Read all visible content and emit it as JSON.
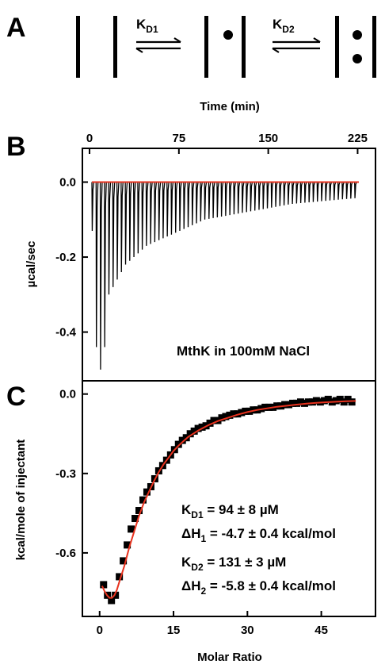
{
  "panel_a": {
    "letter": "A",
    "k1_main": "K",
    "k1_sub": "D1",
    "k2_main": "K",
    "k2_sub": "D2"
  },
  "chart_data": [
    {
      "panel": "B",
      "type": "line",
      "top_axis_title": "Time (min)",
      "ylabel": "µcal/sec",
      "xticks": [
        "0",
        "75",
        "150",
        "225"
      ],
      "yticks": [
        "0.0",
        "-0.2",
        "-0.4"
      ],
      "xlim": [
        -6,
        240
      ],
      "ylim": [
        -0.53,
        0.09
      ],
      "annotation": "MthK in 100mM NaCl",
      "injection_peaks": {
        "count": 64,
        "start_time": 2,
        "interval": 3.5,
        "peak_depths": [
          -0.13,
          -0.44,
          -0.5,
          -0.44,
          -0.3,
          -0.28,
          -0.26,
          -0.24,
          -0.22,
          -0.21,
          -0.2,
          -0.19,
          -0.18,
          -0.17,
          -0.165,
          -0.16,
          -0.155,
          -0.15,
          -0.145,
          -0.14,
          -0.135,
          -0.13,
          -0.125,
          -0.12,
          -0.115,
          -0.11,
          -0.105,
          -0.1,
          -0.098,
          -0.096,
          -0.094,
          -0.092,
          -0.09,
          -0.088,
          -0.086,
          -0.084,
          -0.082,
          -0.08,
          -0.078,
          -0.076,
          -0.074,
          -0.072,
          -0.07,
          -0.068,
          -0.066,
          -0.064,
          -0.062,
          -0.06,
          -0.058,
          -0.057,
          -0.056,
          -0.055,
          -0.054,
          -0.053,
          -0.052,
          -0.051,
          -0.05,
          -0.049,
          -0.048,
          -0.047,
          -0.046,
          -0.045,
          -0.044,
          -0.043
        ]
      },
      "baseline": 0.0,
      "colors": {
        "trace": "#000000",
        "baseline": "#e8321e"
      }
    },
    {
      "panel": "C",
      "type": "scatter",
      "xlabel": "Molar Ratio",
      "ylabel": "kcal/mole of injectant",
      "xticks": [
        "0",
        "15",
        "30",
        "45"
      ],
      "yticks": [
        "0.0",
        "-0.3",
        "-0.6"
      ],
      "xlim": [
        -3.5,
        56
      ],
      "ylim": [
        -0.84,
        0.05
      ],
      "points": {
        "x": [
          0.8,
          1.6,
          2.4,
          3.2,
          4.0,
          4.8,
          5.6,
          6.4,
          7.2,
          8.0,
          8.8,
          9.6,
          10.4,
          11.2,
          12.0,
          12.8,
          13.6,
          14.4,
          15.2,
          16.0,
          16.8,
          17.6,
          18.4,
          19.2,
          20.0,
          20.8,
          21.6,
          22.4,
          23.2,
          24.0,
          24.8,
          25.6,
          26.4,
          27.2,
          28.0,
          28.8,
          29.6,
          30.4,
          31.2,
          32.0,
          32.8,
          33.6,
          34.4,
          35.2,
          36.0,
          36.8,
          37.6,
          38.4,
          39.2,
          40.0,
          40.8,
          41.6,
          42.4,
          43.2,
          44.0,
          44.8,
          45.6,
          46.4,
          47.2,
          48.0,
          48.8,
          49.6,
          50.4,
          51.2
        ],
        "y": [
          -0.72,
          -0.76,
          -0.78,
          -0.76,
          -0.69,
          -0.63,
          -0.57,
          -0.51,
          -0.47,
          -0.44,
          -0.4,
          -0.37,
          -0.35,
          -0.32,
          -0.29,
          -0.27,
          -0.25,
          -0.23,
          -0.21,
          -0.19,
          -0.175,
          -0.165,
          -0.15,
          -0.14,
          -0.13,
          -0.125,
          -0.12,
          -0.11,
          -0.1,
          -0.1,
          -0.09,
          -0.085,
          -0.08,
          -0.075,
          -0.075,
          -0.07,
          -0.065,
          -0.065,
          -0.06,
          -0.06,
          -0.055,
          -0.05,
          -0.05,
          -0.05,
          -0.045,
          -0.045,
          -0.04,
          -0.04,
          -0.035,
          -0.035,
          -0.03,
          -0.035,
          -0.03,
          -0.03,
          -0.025,
          -0.03,
          -0.025,
          -0.02,
          -0.03,
          -0.025,
          -0.02,
          -0.03,
          -0.02,
          -0.03
        ]
      },
      "fit": {
        "x": [
          0.5,
          1.0,
          1.5,
          2.0,
          2.5,
          3.0,
          3.5,
          4.0,
          5.0,
          6.0,
          7.0,
          8.0,
          9.0,
          10.0,
          11.0,
          12.0,
          13.0,
          14.0,
          15.0,
          16.0,
          17.0,
          18.0,
          20.0,
          22.0,
          24.0,
          26.0,
          28.0,
          30.0,
          32.0,
          34.0,
          36.0,
          38.0,
          40.0,
          42.0,
          44.0,
          46.0,
          48.0,
          50.0,
          52.0
        ],
        "y": [
          -0.725,
          -0.745,
          -0.76,
          -0.77,
          -0.77,
          -0.76,
          -0.74,
          -0.71,
          -0.65,
          -0.58,
          -0.52,
          -0.46,
          -0.41,
          -0.37,
          -0.33,
          -0.295,
          -0.265,
          -0.24,
          -0.215,
          -0.195,
          -0.178,
          -0.162,
          -0.138,
          -0.118,
          -0.102,
          -0.09,
          -0.078,
          -0.068,
          -0.06,
          -0.054,
          -0.048,
          -0.044,
          -0.04,
          -0.036,
          -0.033,
          -0.031,
          -0.029,
          -0.027,
          -0.026
        ]
      },
      "annotations": [
        {
          "main": "K",
          "sub": "D1",
          "rest": " = 94 ± 8 µM"
        },
        {
          "main": "ΔH",
          "sub": "1",
          "rest": " = -4.7 ± 0.4 kcal/mol"
        },
        {
          "main": "K",
          "sub": "D2",
          "rest": " = 131 ± 3 µM"
        },
        {
          "main": "ΔH",
          "sub": "2",
          "rest": " = -5.8 ± 0.4 kcal/mol"
        }
      ],
      "colors": {
        "points": "#000000",
        "fit": "#e8321e"
      }
    }
  ]
}
